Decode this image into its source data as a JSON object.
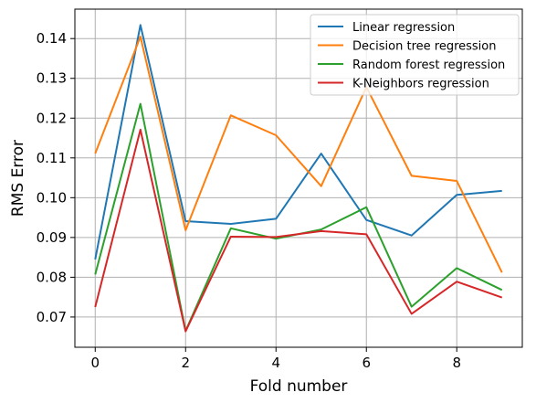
{
  "chart_data": {
    "type": "line",
    "title": "",
    "xlabel": "Fold number",
    "ylabel": "RMS Error",
    "x": [
      0,
      1,
      2,
      3,
      4,
      5,
      6,
      7,
      8,
      9
    ],
    "xlim": [
      -0.45,
      9.45
    ],
    "ylim": [
      0.0624,
      0.1474
    ],
    "xticks": [
      0,
      2,
      4,
      6,
      8
    ],
    "xtick_labels": [
      "0",
      "2",
      "4",
      "6",
      "8"
    ],
    "yticks": [
      0.07,
      0.08,
      0.09,
      0.1,
      0.11,
      0.12,
      0.13,
      0.14
    ],
    "ytick_labels": [
      "0.07",
      "0.08",
      "0.09",
      "0.10",
      "0.11",
      "0.12",
      "0.13",
      "0.14"
    ],
    "grid": true,
    "legend_position": "top-right",
    "series": [
      {
        "name": "Linear regression",
        "color": "#1f77b4",
        "values": [
          0.0845,
          0.1434,
          0.0941,
          0.0934,
          0.0947,
          0.1111,
          0.0944,
          0.0905,
          0.1007,
          0.1017
        ]
      },
      {
        "name": "Decision tree regression",
        "color": "#ff7f0e",
        "values": [
          0.1111,
          0.1405,
          0.0918,
          0.1207,
          0.1157,
          0.1029,
          0.1278,
          0.1055,
          0.1042,
          0.0812
        ]
      },
      {
        "name": "Random forest regression",
        "color": "#2ca02c",
        "values": [
          0.0807,
          0.1236,
          0.0665,
          0.0923,
          0.0897,
          0.092,
          0.0976,
          0.0726,
          0.0823,
          0.0768
        ]
      },
      {
        "name": "K-Neighbors regression",
        "color": "#d62728",
        "values": [
          0.0725,
          0.1171,
          0.0664,
          0.0902,
          0.0901,
          0.0916,
          0.0908,
          0.0708,
          0.0789,
          0.0749
        ]
      }
    ]
  }
}
